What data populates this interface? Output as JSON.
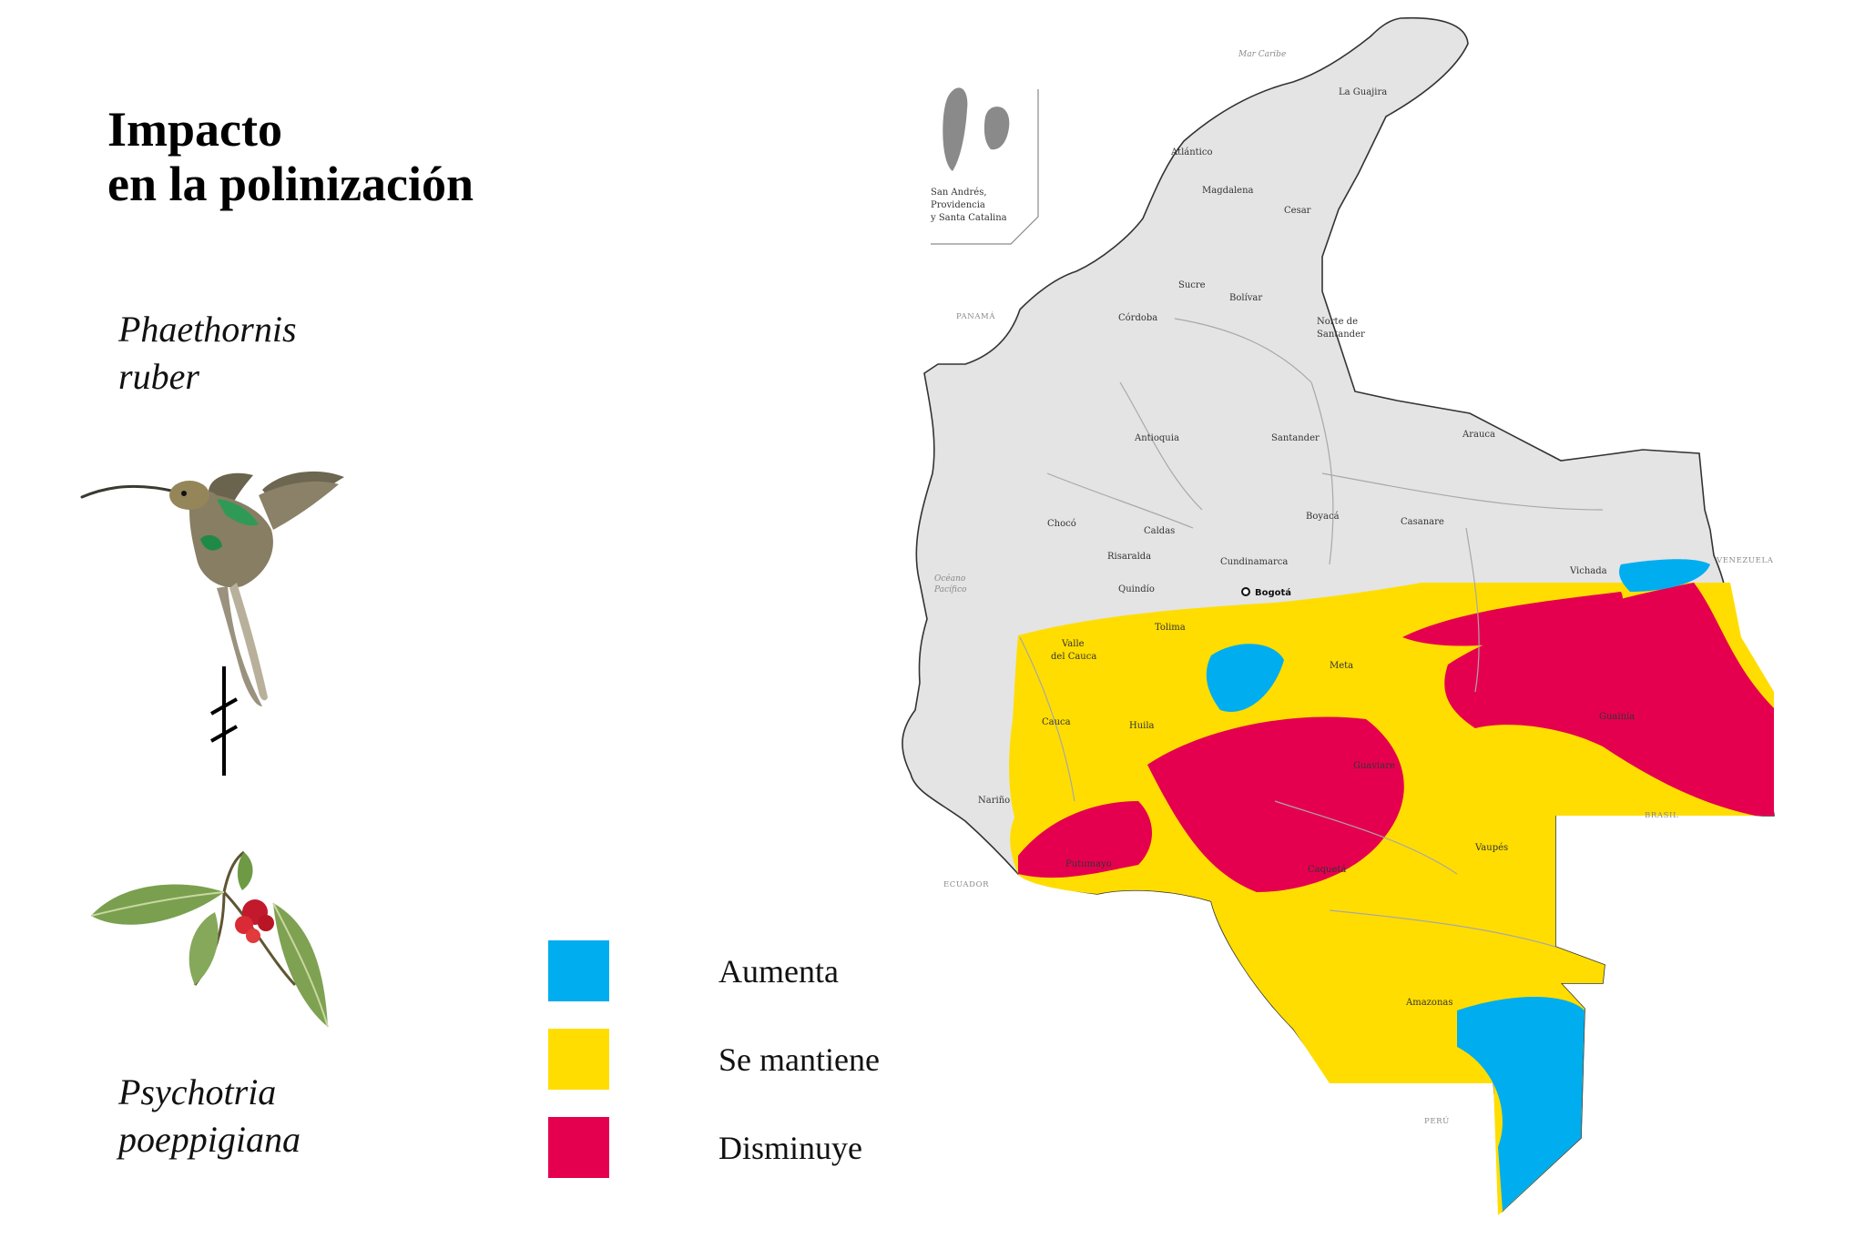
{
  "title": {
    "line1": "Impacto",
    "line2": "en la polinización"
  },
  "species": {
    "pollinator": {
      "line1": "Phaethornis",
      "line2": "ruber",
      "icon": "hummingbird-icon"
    },
    "plant": {
      "line1": "Psychotria",
      "line2": "poeppigiana",
      "icon": "plant-icon"
    },
    "relation_icon": "broken-link-icon"
  },
  "legend": [
    {
      "label": "Aumenta",
      "color": "#00adef"
    },
    {
      "label": "Se mantiene",
      "color": "#ffdd00"
    },
    {
      "label": "Disminuye",
      "color": "#e5004f"
    }
  ],
  "map": {
    "colors": {
      "land": "#e4e4e4",
      "border": "#333333",
      "neighbor_border": "#9a9a9a"
    },
    "inset_label": {
      "line1": "San Andrés,",
      "line2": "Providencia",
      "line3": "y Santa Catalina"
    },
    "departments": [
      "La Guajira",
      "Atlántico",
      "Magdalena",
      "Cesar",
      "Sucre",
      "Bolívar",
      "Córdoba",
      "Norte de",
      "Santander",
      "Antioquia",
      "Santander",
      "Arauca",
      "Chocó",
      "Caldas",
      "Boyacá",
      "Casanare",
      "Risaralda",
      "Cundinamarca",
      "Quindío",
      "Vichada",
      "Tolima",
      "Valle",
      "del Cauca",
      "Meta",
      "Cauca",
      "Huila",
      "Guaviare",
      "Guainía",
      "Nariño",
      "Putumayo",
      "Caquetá",
      "Vaupés",
      "Amazonas"
    ],
    "capital": "Bogotá",
    "countries": [
      "PANAMÁ",
      "VENEZUELA",
      "BRASIL",
      "ECUADOR",
      "PERÚ"
    ],
    "seas": {
      "caribbean": "Mar Caribe",
      "pacific_line1": "Océano",
      "pacific_line2": "Pacífico"
    }
  }
}
